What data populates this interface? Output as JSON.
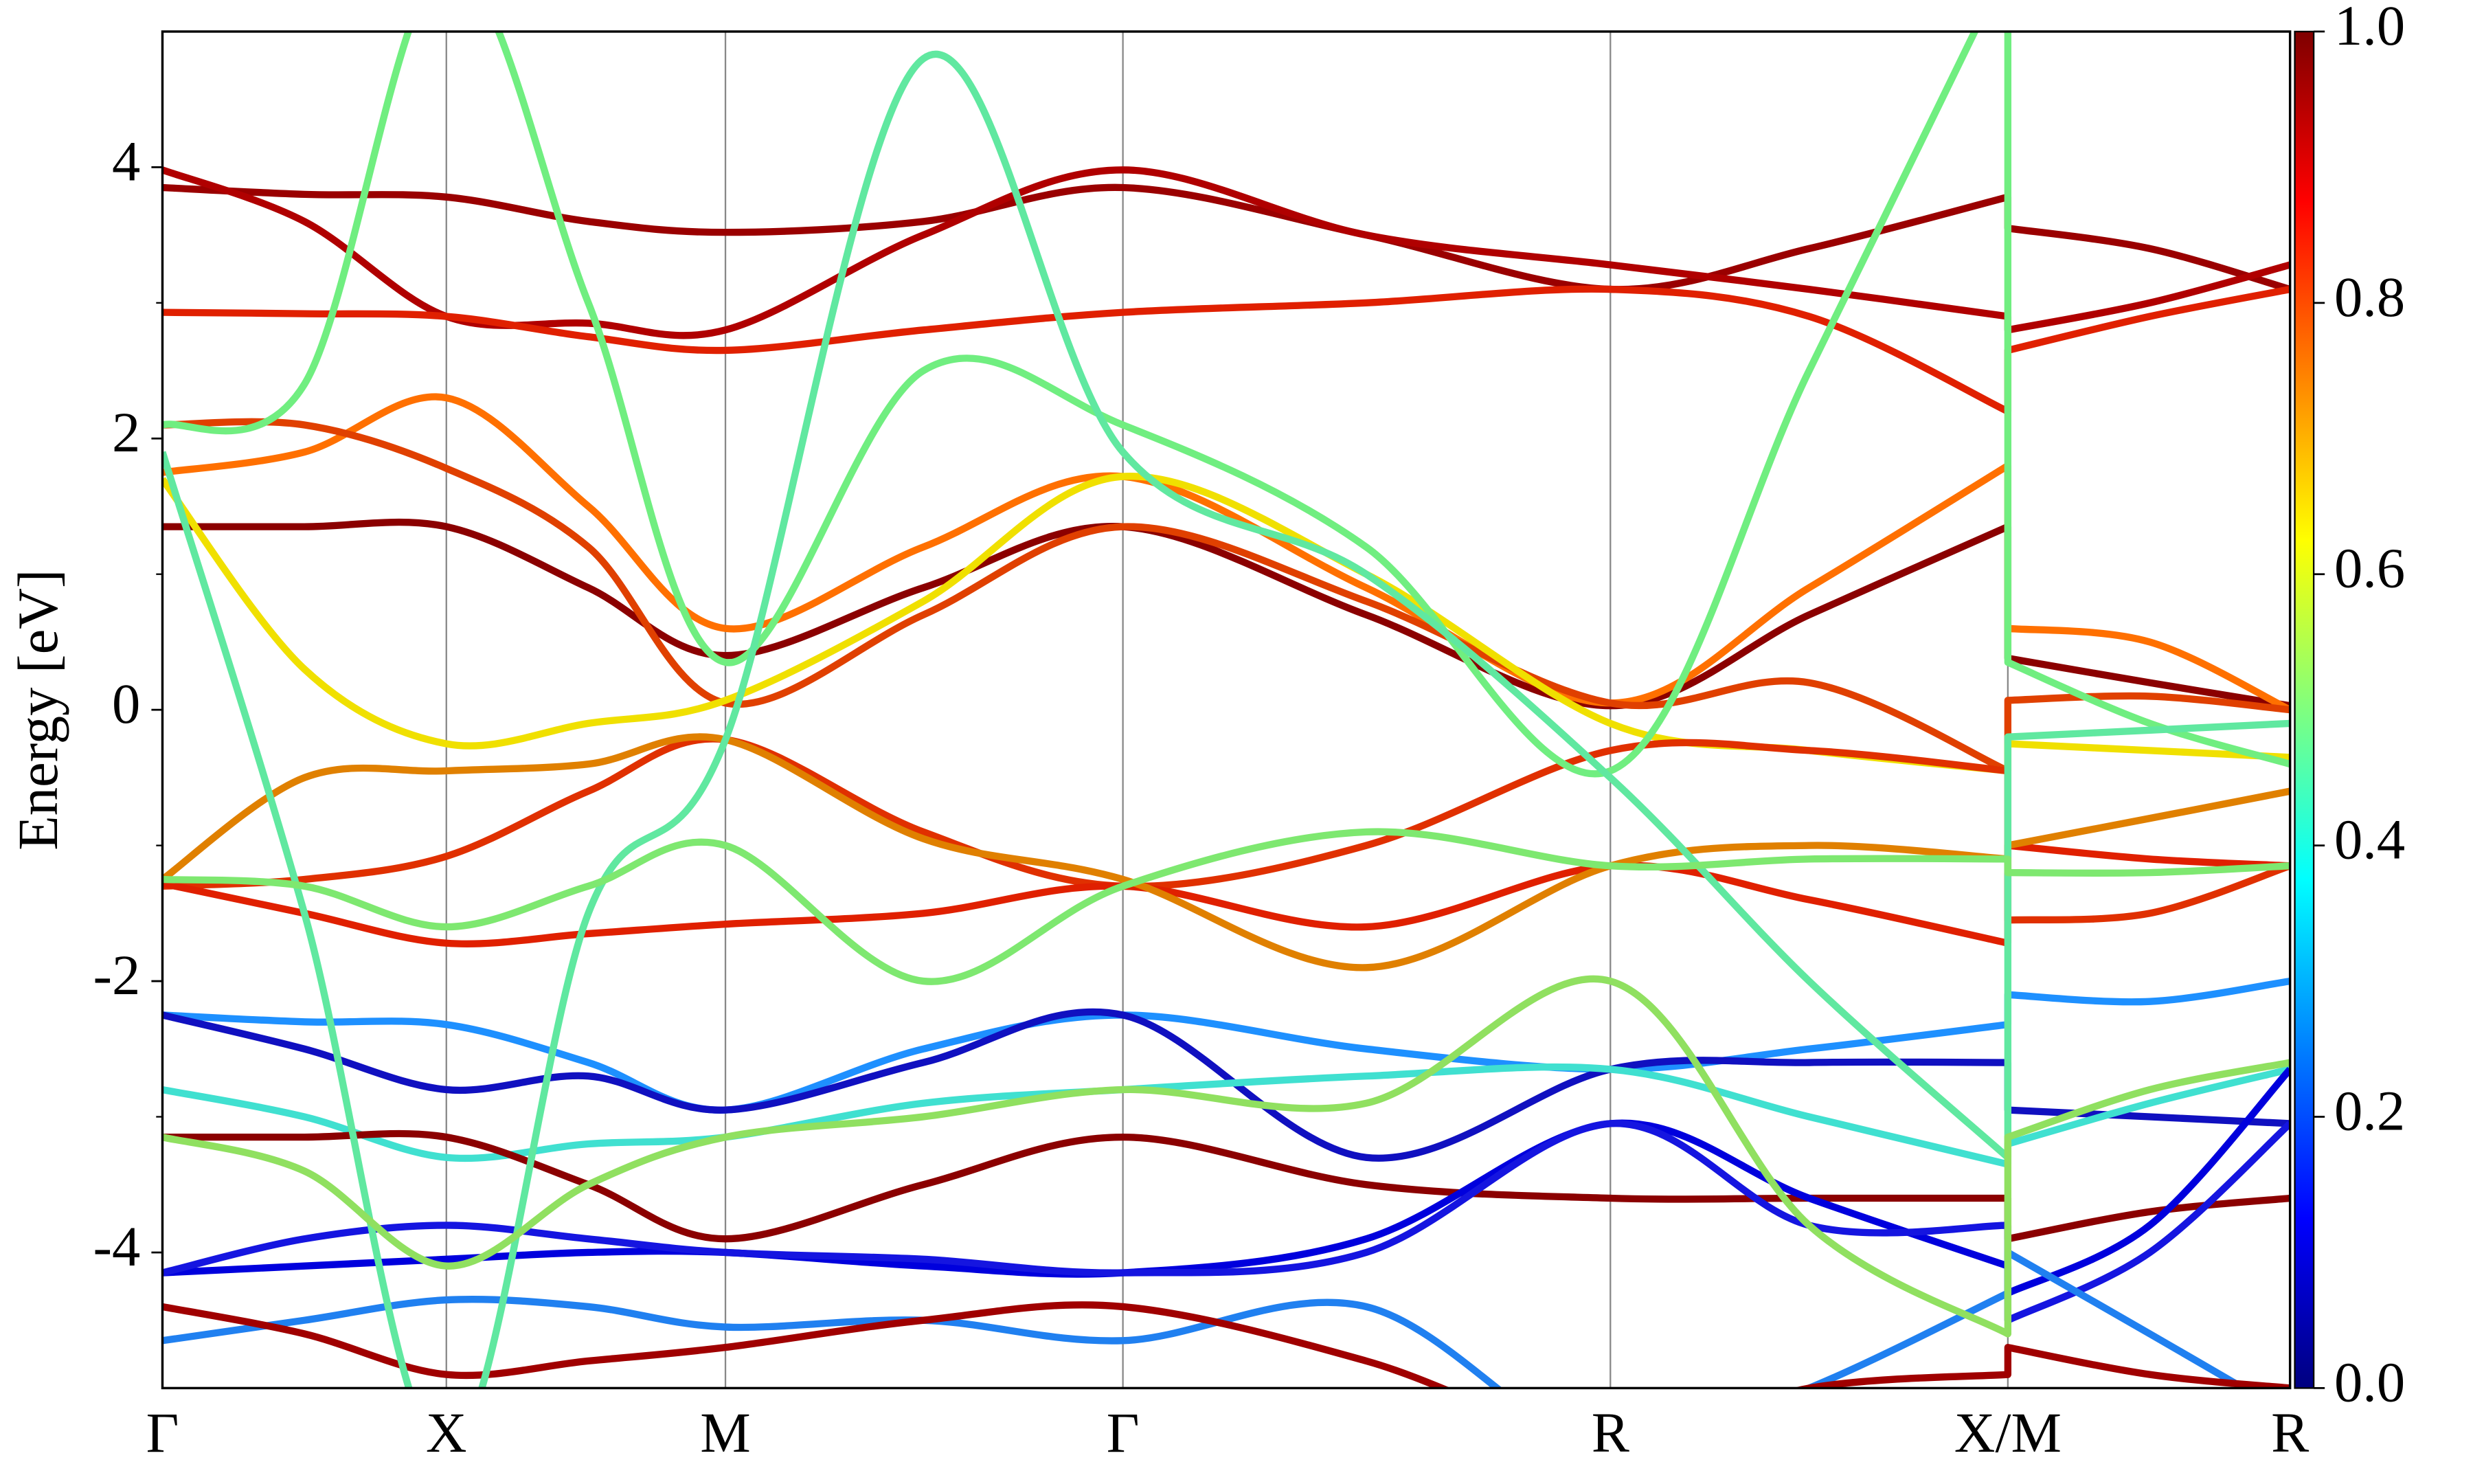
{
  "chart_data": {
    "type": "line",
    "y_label": "Energy [eV]",
    "ylim": [
      -5,
      5
    ],
    "yticks": [
      -4,
      -2,
      0,
      2,
      4
    ],
    "xlim": [
      0,
      7.494
    ],
    "xticks": [
      {
        "value": 0,
        "label": "Γ"
      },
      {
        "value": 1.0,
        "label": "X"
      },
      {
        "value": 1.983,
        "label": "M"
      },
      {
        "value": 3.383,
        "label": "Γ"
      },
      {
        "value": 5.1,
        "label": "R"
      },
      {
        "value": 6.5,
        "label": "X/M"
      },
      {
        "value": 7.494,
        "label": "R"
      }
    ],
    "grid": true,
    "x": [
      0,
      0.5,
      1.0,
      1.5,
      1.983,
      2.68,
      3.383,
      4.24,
      5.1,
      5.8,
      6.5,
      6.5,
      7.0,
      7.494
    ],
    "series": [
      {
        "color": "#8b0000",
        "values": [
          1.35,
          1.35,
          1.35,
          0.9,
          0.4,
          0.9,
          1.35,
          0.7,
          0.03,
          0.7,
          1.35,
          0.38,
          0.2,
          0.03
        ]
      },
      {
        "color": "#9a0000",
        "values": [
          3.85,
          3.8,
          3.78,
          3.6,
          3.52,
          3.6,
          3.85,
          3.5,
          3.1,
          3.4,
          3.78,
          3.55,
          3.4,
          3.1
        ]
      },
      {
        "color": "#b00000",
        "values": [
          3.98,
          3.6,
          2.9,
          2.85,
          2.8,
          3.5,
          3.98,
          3.5,
          3.28,
          3.1,
          2.9,
          2.8,
          3.0,
          3.28
        ]
      },
      {
        "color": "#e02000",
        "values": [
          2.93,
          2.92,
          2.9,
          2.75,
          2.65,
          2.8,
          2.93,
          3.0,
          3.1,
          2.9,
          2.2,
          2.65,
          2.9,
          3.1
        ]
      },
      {
        "color": "#ff7000",
        "values": [
          1.75,
          1.9,
          2.3,
          1.5,
          0.6,
          1.2,
          1.72,
          0.9,
          0.05,
          0.9,
          1.8,
          0.6,
          0.5,
          0.0
        ]
      },
      {
        "color": "#e04000",
        "values": [
          2.1,
          2.1,
          1.78,
          1.2,
          0.05,
          0.7,
          1.35,
          0.8,
          0.05,
          0.2,
          -0.45,
          0.07,
          0.1,
          0.0
        ]
      },
      {
        "color": "#f0e000",
        "values": [
          1.7,
          0.3,
          -0.25,
          -0.1,
          0.07,
          0.8,
          1.72,
          1.0,
          -0.1,
          -0.3,
          -0.45,
          -0.25,
          -0.3,
          -0.35
        ]
      },
      {
        "color": "#e03000",
        "values": [
          -1.3,
          -1.25,
          -1.08,
          -0.6,
          -0.22,
          -0.9,
          -1.3,
          -1.0,
          -0.3,
          -0.3,
          -0.45,
          -1.55,
          -1.5,
          -1.15
        ]
      },
      {
        "color": "#e02000",
        "values": [
          -1.28,
          -1.5,
          -1.72,
          -1.65,
          -1.58,
          -1.5,
          -1.3,
          -1.6,
          -1.15,
          -1.4,
          -1.72,
          -1.0,
          -1.1,
          -1.15
        ]
      },
      {
        "color": "#e08000",
        "values": [
          -1.25,
          -0.5,
          -0.45,
          -0.4,
          -0.22,
          -0.95,
          -1.25,
          -1.9,
          -1.15,
          -1.0,
          -1.1,
          -1.0,
          -0.8,
          -0.6
        ]
      },
      {
        "color": "#1e90ff",
        "values": [
          -2.25,
          -2.3,
          -2.32,
          -2.6,
          -2.95,
          -2.5,
          -2.25,
          -2.5,
          -2.65,
          -2.5,
          -2.32,
          -2.1,
          -2.15,
          -2.0
        ]
      },
      {
        "color": "#1010c0",
        "values": [
          -2.25,
          -2.5,
          -2.8,
          -2.7,
          -2.95,
          -2.6,
          -2.25,
          -3.3,
          -2.65,
          -2.6,
          -2.6,
          -2.95,
          -3.0,
          -3.05
        ]
      },
      {
        "color": "#40e0d0",
        "values": [
          -2.8,
          -3.0,
          -3.3,
          -3.2,
          -3.15,
          -2.9,
          -2.8,
          -2.7,
          -2.65,
          -3.0,
          -3.35,
          -3.2,
          -2.9,
          -2.65
        ]
      },
      {
        "color": "#8b0000",
        "values": [
          -3.15,
          -3.15,
          -3.15,
          -3.5,
          -3.9,
          -3.5,
          -3.15,
          -3.5,
          -3.6,
          -3.6,
          -3.6,
          -3.9,
          -3.7,
          -3.6
        ]
      },
      {
        "color": "#0000dd",
        "values": [
          -4.15,
          -4.1,
          -4.05,
          -4.0,
          -4.0,
          -4.1,
          -4.15,
          -3.9,
          -3.05,
          -3.6,
          -4.1,
          -4.3,
          -3.8,
          -2.65
        ]
      },
      {
        "color": "#1515e0",
        "values": [
          -4.15,
          -3.9,
          -3.8,
          -3.9,
          -4.0,
          -4.05,
          -4.15,
          -4.0,
          -3.05,
          -3.8,
          -3.8,
          -4.5,
          -4.0,
          -3.05
        ]
      },
      {
        "color": "#2080f0",
        "values": [
          -4.65,
          -4.5,
          -4.35,
          -4.4,
          -4.55,
          -4.5,
          -4.65,
          -4.4,
          -5.5,
          -5.0,
          -4.3,
          -4.0,
          -4.6,
          -5.2
        ]
      },
      {
        "color": "#a00000",
        "values": [
          -4.4,
          -4.6,
          -4.9,
          -4.8,
          -4.7,
          -4.5,
          -4.4,
          -4.8,
          -5.4,
          -5.0,
          -4.9,
          -4.7,
          -4.9,
          -5.0
        ]
      },
      {
        "color": "#70ee80",
        "values": [
          2.1,
          2.4,
          5.5,
          3.0,
          0.35,
          2.5,
          2.1,
          1.2,
          -0.45,
          2.5,
          5.5,
          0.35,
          -0.1,
          -0.4
        ]
      },
      {
        "color": "#60e8a0",
        "values": [
          1.9,
          -1.5,
          -5.5,
          -1.5,
          -0.22,
          4.8,
          1.9,
          1.0,
          -0.5,
          -2.0,
          -3.3,
          -0.2,
          -0.15,
          -0.1
        ]
      },
      {
        "color": "#7ee870",
        "values": [
          -1.25,
          -1.3,
          -1.6,
          -1.3,
          -1.0,
          -2.0,
          -1.3,
          -0.9,
          -1.15,
          -1.1,
          -1.1,
          -1.2,
          -1.2,
          -1.15
        ]
      },
      {
        "color": "#90e060",
        "values": [
          -3.15,
          -3.4,
          -4.1,
          -3.5,
          -3.15,
          -3.0,
          -2.8,
          -2.9,
          -2.0,
          -3.8,
          -4.6,
          -3.15,
          -2.8,
          -2.6
        ]
      }
    ],
    "colorbar": {
      "lim": [
        0,
        1
      ],
      "ticks": [
        {
          "value": 0,
          "label": "0.0"
        },
        0.2,
        0.4,
        0.6,
        0.8,
        {
          "value": 1,
          "label": "1.0"
        }
      ],
      "colors": [
        "#00007f",
        "#0000ff",
        "#007fff",
        "#00ffff",
        "#7fff7f",
        "#ffff00",
        "#ff7f00",
        "#ff0000",
        "#7f0000"
      ]
    }
  }
}
